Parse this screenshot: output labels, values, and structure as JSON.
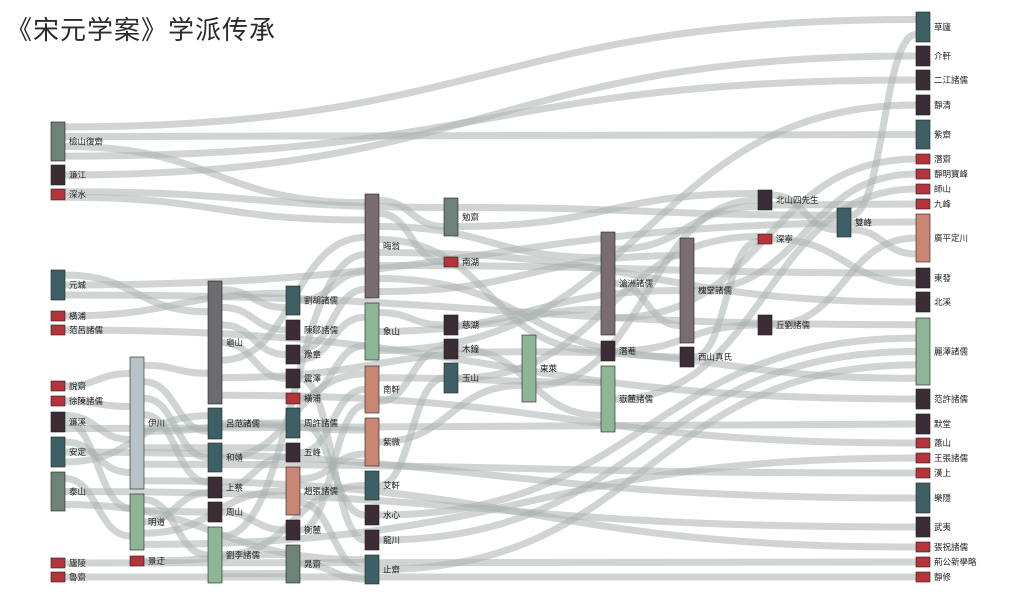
{
  "title": "《宋元学案》学派传承",
  "palette": {
    "link": "#a9b3b1",
    "dark": "#3a2d36",
    "red": "#b5333a",
    "teal": "#3f5f66",
    "slate": "#6c6c70",
    "sage": "#6f8279",
    "mint": "#8db596",
    "salmon": "#c98674",
    "mauve": "#7a6d71",
    "paleblue": "#b8c3c7",
    "stroke": "#1f1f1f"
  },
  "nodes": [
    {
      "id": "檢山復齋",
      "label": "檢山復齋",
      "color": "sage"
    },
    {
      "id": "濂江",
      "label": "濂江",
      "color": "dark"
    },
    {
      "id": "深水",
      "label": "深水",
      "color": "red"
    },
    {
      "id": "元城",
      "label": "元城",
      "color": "teal"
    },
    {
      "id": "橫浦",
      "label": "橫浦",
      "color": "red"
    },
    {
      "id": "范呂諸儒1",
      "label": "范呂諸儒",
      "color": "red"
    },
    {
      "id": "說齋",
      "label": "說齋",
      "color": "red"
    },
    {
      "id": "徐陳諸儒",
      "label": "徐陳諸儒",
      "color": "red"
    },
    {
      "id": "濂溪",
      "label": "濂溪",
      "color": "dark"
    },
    {
      "id": "安定",
      "label": "安定",
      "color": "teal"
    },
    {
      "id": "泰山",
      "label": "泰山",
      "color": "sage"
    },
    {
      "id": "廬陵",
      "label": "廬陵",
      "color": "red"
    },
    {
      "id": "魯齋",
      "label": "魯齋",
      "color": "red"
    },
    {
      "id": "伊川",
      "label": "伊川",
      "color": "paleblue"
    },
    {
      "id": "明道",
      "label": "明道",
      "color": "mint"
    },
    {
      "id": "景迂",
      "label": "景迂",
      "color": "red"
    },
    {
      "id": "龜山",
      "label": "龜山",
      "color": "slate"
    },
    {
      "id": "呂范諸儒",
      "label": "呂范諸儒",
      "color": "teal"
    },
    {
      "id": "和靖",
      "label": "和靖",
      "color": "teal"
    },
    {
      "id": "上蔡",
      "label": "上蔡",
      "color": "dark"
    },
    {
      "id": "周山",
      "label": "周山",
      "color": "dark"
    },
    {
      "id": "劉李諸儒",
      "label": "劉李諸儒",
      "color": "mint"
    },
    {
      "id": "劉胡諸儒",
      "label": "劉胡諸儒",
      "color": "teal"
    },
    {
      "id": "陳鄒諸儒",
      "label": "陳鄒諸儒",
      "color": "dark"
    },
    {
      "id": "豫章",
      "label": "豫章",
      "color": "dark"
    },
    {
      "id": "震澤",
      "label": "震澤",
      "color": "dark"
    },
    {
      "id": "橫浦2",
      "label": "橫浦",
      "color": "red"
    },
    {
      "id": "周許諸儒",
      "label": "周許諸儒",
      "color": "teal"
    },
    {
      "id": "五峰",
      "label": "五峰",
      "color": "dark"
    },
    {
      "id": "趙張諸儒",
      "label": "趙張諸儒",
      "color": "salmon"
    },
    {
      "id": "衡麓",
      "label": "衡麓",
      "color": "dark"
    },
    {
      "id": "晁齋",
      "label": "晁齋",
      "color": "sage"
    },
    {
      "id": "晦翁",
      "label": "晦翁",
      "color": "mauve"
    },
    {
      "id": "象山",
      "label": "象山",
      "color": "mint"
    },
    {
      "id": "南軒",
      "label": "南軒",
      "color": "salmon"
    },
    {
      "id": "紫微",
      "label": "紫微",
      "color": "salmon"
    },
    {
      "id": "艾軒",
      "label": "艾軒",
      "color": "teal"
    },
    {
      "id": "水心",
      "label": "水心",
      "color": "dark"
    },
    {
      "id": "龍川",
      "label": "龍川",
      "color": "dark"
    },
    {
      "id": "止齋",
      "label": "止齋",
      "color": "teal"
    },
    {
      "id": "勉齋",
      "label": "勉齋",
      "color": "sage"
    },
    {
      "id": "南湖",
      "label": "南湖",
      "color": "red"
    },
    {
      "id": "慈湖",
      "label": "慈湖",
      "color": "dark"
    },
    {
      "id": "木鐘",
      "label": "木鐘",
      "color": "dark"
    },
    {
      "id": "玉山",
      "label": "玉山",
      "color": "teal"
    },
    {
      "id": "東萊",
      "label": "東萊",
      "color": "mint"
    },
    {
      "id": "滄洲諸儒",
      "label": "滄洲諸儒",
      "color": "mauve"
    },
    {
      "id": "潛菴",
      "label": "潛菴",
      "color": "dark"
    },
    {
      "id": "嶽麓諸儒",
      "label": "嶽麓諸儒",
      "color": "mint"
    },
    {
      "id": "槐堂諸儒",
      "label": "槐堂諸儒",
      "color": "mauve"
    },
    {
      "id": "西山真氏",
      "label": "西山真氏",
      "color": "dark"
    },
    {
      "id": "北山四先生",
      "label": "北山四先生",
      "color": "dark"
    },
    {
      "id": "深寧",
      "label": "深寧",
      "color": "red"
    },
    {
      "id": "丘劉諸儒",
      "label": "丘劉諸儒",
      "color": "dark"
    },
    {
      "id": "雙峰",
      "label": "雙峰",
      "color": "teal"
    },
    {
      "id": "草廬",
      "label": "草廬",
      "color": "teal"
    },
    {
      "id": "介軒",
      "label": "介軒",
      "color": "dark"
    },
    {
      "id": "二江諸儒",
      "label": "二江諸儒",
      "color": "dark"
    },
    {
      "id": "靜清",
      "label": "靜清",
      "color": "dark"
    },
    {
      "id": "紫齋",
      "label": "紫齋",
      "color": "teal"
    },
    {
      "id": "潛齋",
      "label": "潛齋",
      "color": "red"
    },
    {
      "id": "靜明寶峰",
      "label": "靜明寶峰",
      "color": "red"
    },
    {
      "id": "師山",
      "label": "師山",
      "color": "red"
    },
    {
      "id": "九峰",
      "label": "九峰",
      "color": "red"
    },
    {
      "id": "廣平定川",
      "label": "廣平定川",
      "color": "salmon"
    },
    {
      "id": "東發",
      "label": "東發",
      "color": "dark"
    },
    {
      "id": "北溪",
      "label": "北溪",
      "color": "dark"
    },
    {
      "id": "麗澤諸儒",
      "label": "麗澤諸儒",
      "color": "mint"
    },
    {
      "id": "范許諸儒",
      "label": "范許諸儒",
      "color": "dark"
    },
    {
      "id": "默堂",
      "label": "默堂",
      "color": "dark"
    },
    {
      "id": "蕭山",
      "label": "蕭山",
      "color": "red"
    },
    {
      "id": "王張諸儒",
      "label": "王張諸儒",
      "color": "red"
    },
    {
      "id": "漢上",
      "label": "漢上",
      "color": "red"
    },
    {
      "id": "樂隱",
      "label": "樂隱",
      "color": "teal"
    },
    {
      "id": "武夷",
      "label": "武夷",
      "color": "dark"
    },
    {
      "id": "張祝諸儒",
      "label": "張祝諸儒",
      "color": "red"
    },
    {
      "id": "荊公新學略",
      "label": "荊公新學略",
      "color": "red"
    },
    {
      "id": "靜修",
      "label": "靜修",
      "color": "red"
    }
  ],
  "links": [
    [
      "檢山復齋",
      "草廬"
    ],
    [
      "檢山復齋",
      "紫齋"
    ],
    [
      "檢山復齋",
      "晦翁"
    ],
    [
      "檢山復齋",
      "二江諸儒"
    ],
    [
      "濂江",
      "介軒"
    ],
    [
      "深水",
      "勉齋"
    ],
    [
      "深水",
      "晦翁"
    ],
    [
      "元城",
      "龜山"
    ],
    [
      "元城",
      "廣平定川"
    ],
    [
      "元城",
      "麗澤諸儒"
    ],
    [
      "橫浦",
      "劉胡諸儒"
    ],
    [
      "范呂諸儒1",
      "范許諸儒"
    ],
    [
      "說齋",
      "伊川"
    ],
    [
      "徐陳諸儒",
      "伊川"
    ],
    [
      "濂溪",
      "伊川"
    ],
    [
      "濂溪",
      "明道"
    ],
    [
      "濂溪",
      "默堂"
    ],
    [
      "安定",
      "伊川"
    ],
    [
      "安定",
      "樂隱"
    ],
    [
      "安定",
      "呂范諸儒"
    ],
    [
      "泰山",
      "明道"
    ],
    [
      "泰山",
      "武夷"
    ],
    [
      "泰山",
      "止齋"
    ],
    [
      "廬陵",
      "荊公新學略"
    ],
    [
      "魯齋",
      "靜修"
    ],
    [
      "伊川",
      "龜山"
    ],
    [
      "伊川",
      "呂范諸儒"
    ],
    [
      "伊川",
      "和靖"
    ],
    [
      "伊川",
      "上蔡"
    ],
    [
      "伊川",
      "周許諸儒"
    ],
    [
      "伊川",
      "五峰"
    ],
    [
      "伊川",
      "漢上"
    ],
    [
      "伊川",
      "張祝諸儒"
    ],
    [
      "明道",
      "劉李諸儒"
    ],
    [
      "明道",
      "周山"
    ],
    [
      "明道",
      "上蔡"
    ],
    [
      "明道",
      "趙張諸儒"
    ],
    [
      "明道",
      "王張諸儒"
    ],
    [
      "景迂",
      "晁齋"
    ],
    [
      "龜山",
      "劉胡諸儒"
    ],
    [
      "龜山",
      "陳鄒諸儒"
    ],
    [
      "龜山",
      "豫章"
    ],
    [
      "龜山",
      "震澤"
    ],
    [
      "龜山",
      "晦翁"
    ],
    [
      "龜山",
      "東萊"
    ],
    [
      "龜山",
      "蕭山"
    ],
    [
      "呂范諸儒",
      "紫微"
    ],
    [
      "和靖",
      "南軒"
    ],
    [
      "上蔡",
      "五峰"
    ],
    [
      "周山",
      "衡麓"
    ],
    [
      "劉李諸儒",
      "晦翁"
    ],
    [
      "劉李諸儒",
      "艾軒"
    ],
    [
      "劉李諸儒",
      "晁齋"
    ],
    [
      "劉胡諸儒",
      "晦翁"
    ],
    [
      "豫章",
      "晦翁"
    ],
    [
      "豫章",
      "象山"
    ],
    [
      "震澤",
      "龍川"
    ],
    [
      "橫浦2",
      "象山"
    ],
    [
      "周許諸儒",
      "水心"
    ],
    [
      "五峰",
      "南軒"
    ],
    [
      "趙張諸儒",
      "紫微"
    ],
    [
      "趙張諸儒",
      "止齋"
    ],
    [
      "衡麓",
      "南軒"
    ],
    [
      "晁齋",
      "止齋"
    ],
    [
      "晦翁",
      "勉齋"
    ],
    [
      "晦翁",
      "南湖"
    ],
    [
      "晦翁",
      "滄洲諸儒"
    ],
    [
      "晦翁",
      "潛菴"
    ],
    [
      "晦翁",
      "北溪"
    ],
    [
      "晦翁",
      "東發"
    ],
    [
      "晦翁",
      "西山真氏"
    ],
    [
      "晦翁",
      "槐堂諸儒"
    ],
    [
      "象山",
      "慈湖"
    ],
    [
      "象山",
      "槐堂諸儒"
    ],
    [
      "象山",
      "靜清"
    ],
    [
      "南軒",
      "嶽麓諸儒"
    ],
    [
      "南軒",
      "木鐘"
    ],
    [
      "紫微",
      "東萊"
    ],
    [
      "艾軒",
      "玉山"
    ],
    [
      "水心",
      "麗澤諸儒"
    ],
    [
      "龍川",
      "麗澤諸儒"
    ],
    [
      "止齋",
      "麗澤諸儒"
    ],
    [
      "勉齋",
      "雙峰"
    ],
    [
      "勉齋",
      "北山四先生"
    ],
    [
      "慈湖",
      "滄洲諸儒"
    ],
    [
      "木鐘",
      "嶽麓諸儒"
    ],
    [
      "玉山",
      "深寧"
    ],
    [
      "東萊",
      "麗澤諸儒"
    ],
    [
      "東萊",
      "北山四先生"
    ],
    [
      "滄洲諸儒",
      "北山四先生"
    ],
    [
      "滄洲諸儒",
      "槐堂諸儒"
    ],
    [
      "滄洲諸儒",
      "潛齋"
    ],
    [
      "潛菴",
      "丘劉諸儒"
    ],
    [
      "嶽麓諸儒",
      "師山"
    ],
    [
      "槐堂諸儒",
      "靜明寶峰"
    ],
    [
      "西山真氏",
      "深寧"
    ],
    [
      "北山四先生",
      "雙峰"
    ],
    [
      "北山四先生",
      "九峰"
    ],
    [
      "深寧",
      "東發"
    ],
    [
      "丘劉諸儒",
      "廣平定川"
    ],
    [
      "雙峰",
      "草廬"
    ],
    [
      "雙峰",
      "廣平定川"
    ]
  ]
}
